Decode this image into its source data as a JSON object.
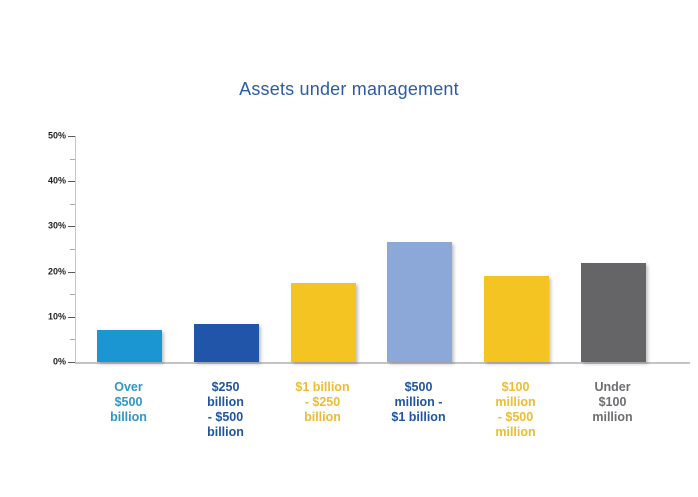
{
  "page": {
    "background_color": "#ffffff"
  },
  "chart_data": {
    "type": "bar",
    "title": "Assets under management",
    "title_color": "#2b5ca9",
    "xlabel": "",
    "ylabel": "",
    "ylim": [
      0,
      50
    ],
    "grid": "off",
    "legend": "none",
    "y_ticks": [
      {
        "value": 0,
        "label": "0%"
      },
      {
        "value": 10,
        "label": "10%"
      },
      {
        "value": 20,
        "label": "20%"
      },
      {
        "value": 30,
        "label": "30%"
      },
      {
        "value": 40,
        "label": "40%"
      },
      {
        "value": 50,
        "label": "50%"
      }
    ],
    "y_minor_ticks": [
      5,
      15,
      25,
      35,
      45
    ],
    "categories": [
      "Over\n$500\nbillion",
      "$250\nbillion\n- $500\nbillion",
      "$1 billion\n- $250\nbillion",
      "$500\nmillion -\n$1 billion",
      "$100\nmillion\n- $500\nmillion",
      "Under\n$100\nmillion"
    ],
    "values": [
      7,
      8.5,
      17.5,
      26.5,
      19,
      22
    ],
    "unit": "%",
    "bar_colors": [
      "#1b96d2",
      "#2055a9",
      "#f4c522",
      "#8ca8d9",
      "#f4c522",
      "#656568"
    ],
    "label_colors": [
      "#2e97c9",
      "#1f55a3",
      "#edbc31",
      "#1f55a3",
      "#edbc31",
      "#6d6e71"
    ],
    "axis_colors": {
      "axis_line": "#c6c7c8",
      "baseline": "#c4c4c6",
      "major_tick": "#58595b",
      "minor_tick": "#a7a9ac",
      "tick_label": "#231f20"
    }
  }
}
